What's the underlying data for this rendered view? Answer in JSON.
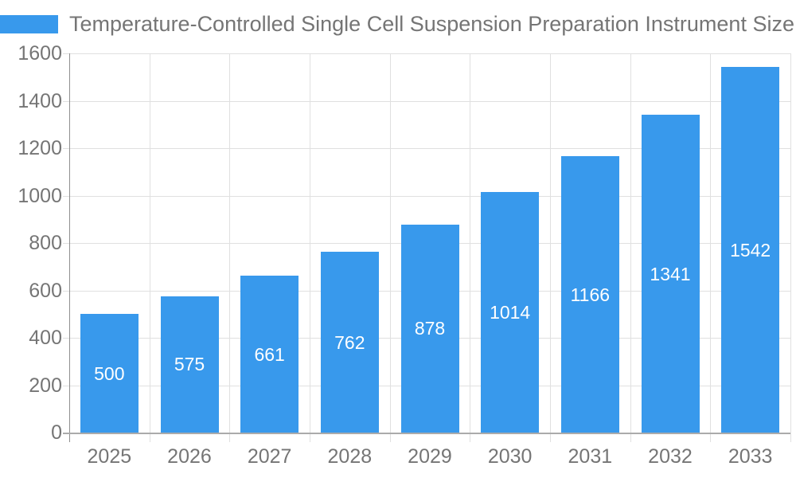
{
  "legend": {
    "series_label": "Temperature-Controlled Single Cell Suspension Preparation Instrument Size (million"
  },
  "chart_data": {
    "type": "bar",
    "title": "Temperature-Controlled Single Cell Suspension Preparation Instrument Size (million",
    "categories": [
      "2025",
      "2026",
      "2027",
      "2028",
      "2029",
      "2030",
      "2031",
      "2032",
      "2033"
    ],
    "values": [
      500,
      575,
      661,
      762,
      878,
      1014,
      1166,
      1341,
      1542
    ],
    "xlabel": "",
    "ylabel": "",
    "ylim": [
      0,
      1600
    ],
    "ytick_step": 200,
    "yticks": [
      0,
      200,
      400,
      600,
      800,
      1000,
      1200,
      1400,
      1600
    ],
    "grid": true,
    "legend_position": "top-left",
    "value_labels": "inside-center",
    "colors": {
      "bar": "#3899ec",
      "value_label": "#ffffff",
      "axis_text": "#757575",
      "title_text": "#757575",
      "gridline": "#e0e0e0",
      "y_axis_line": "#8f8f8f",
      "x_axis_line": "#ababab",
      "background": "#ffffff"
    }
  }
}
